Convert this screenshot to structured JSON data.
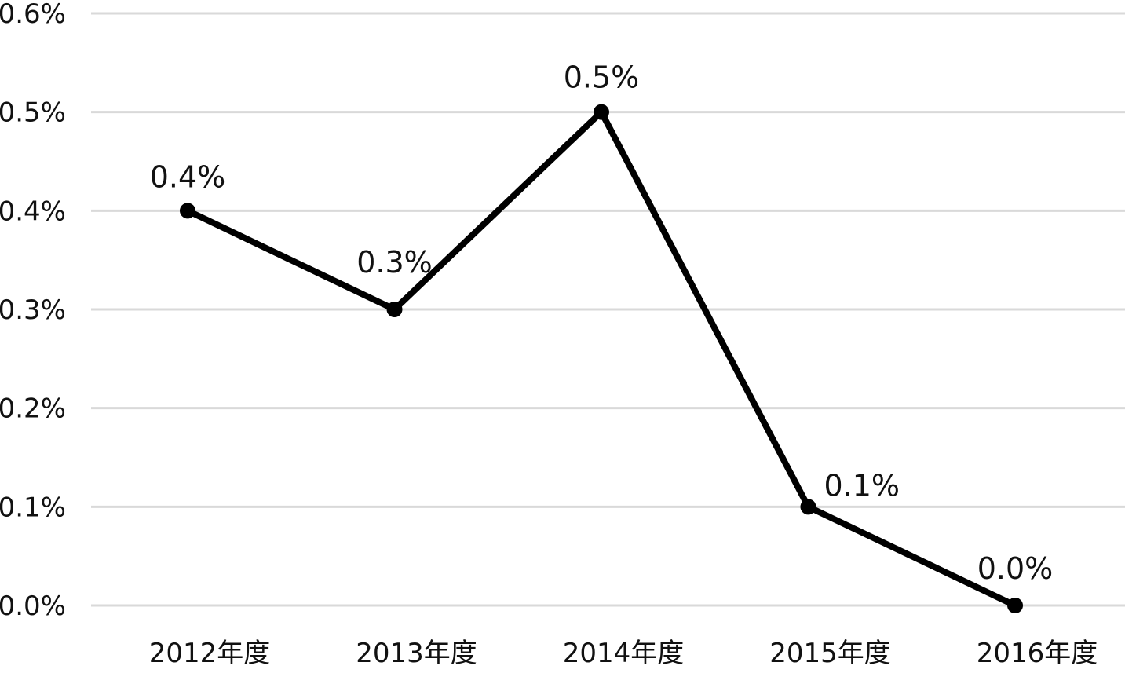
{
  "chart_data": {
    "type": "line",
    "title": "",
    "xlabel": "",
    "ylabel": "",
    "categories": [
      "2012年度",
      "2013年度",
      "2014年度",
      "2015年度",
      "2016年度"
    ],
    "series": [
      {
        "values": [
          0.4,
          0.3,
          0.5,
          0.1,
          0.0
        ],
        "labels": [
          "0.4%",
          "0.3%",
          "0.5%",
          "0.1%",
          "0.0%"
        ],
        "color": "#000000"
      }
    ],
    "ylim": [
      0,
      0.6
    ],
    "yticks": [
      0,
      0.1,
      0.2,
      0.3,
      0.4,
      0.5,
      0.6
    ],
    "ytick_labels": [
      "0.0%",
      "0.1%",
      "0.2%",
      "0.3%",
      "0.4%",
      "0.5%",
      "0.6%"
    ],
    "grid": true,
    "grid_color": "#d9d9d9",
    "legend": false
  }
}
